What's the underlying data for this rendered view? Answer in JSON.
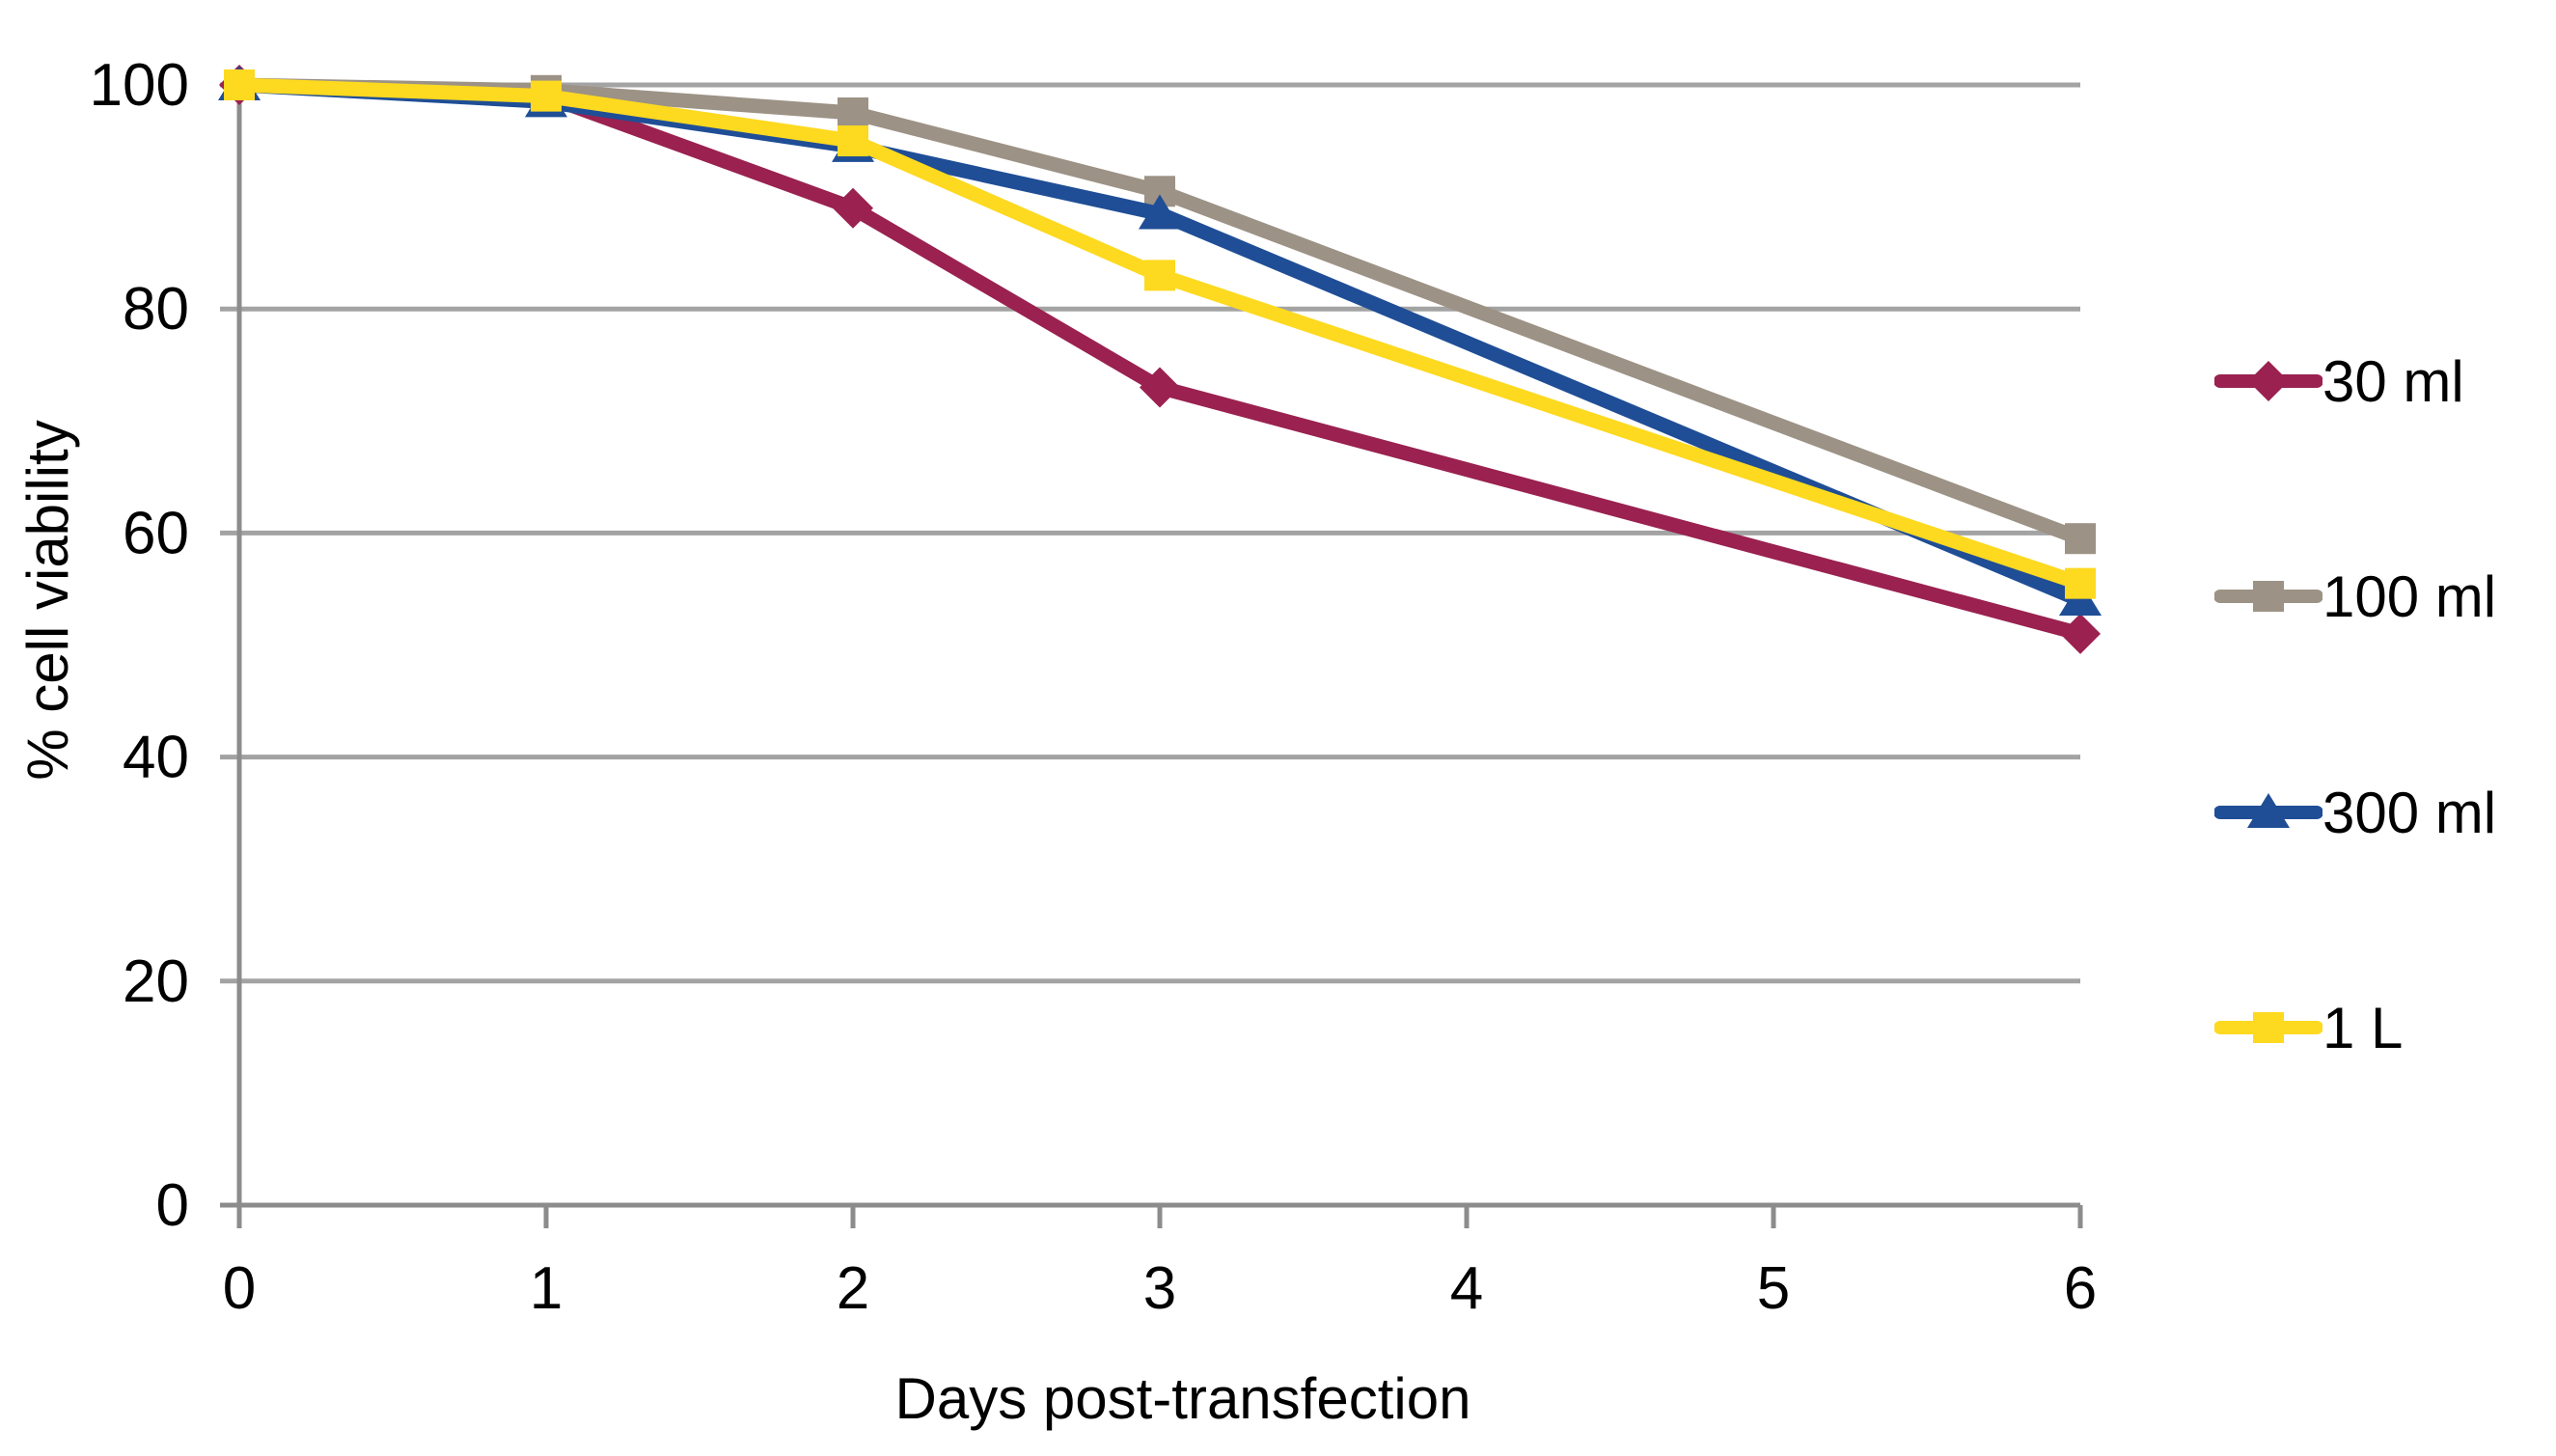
{
  "chart_data": {
    "type": "line",
    "x": [
      0,
      1,
      2,
      3,
      6
    ],
    "x_ticks": [
      0,
      1,
      2,
      3,
      4,
      5,
      6
    ],
    "y_ticks": [
      0,
      20,
      40,
      60,
      80,
      100
    ],
    "xlim": [
      0,
      6
    ],
    "ylim": [
      0,
      100
    ],
    "xlabel": "Days post-transfection",
    "ylabel": "% cell viability",
    "grid": true,
    "legend_position": "right",
    "series": [
      {
        "name": "30 ml",
        "color": "#9A2150",
        "marker": "diamond",
        "values": [
          100,
          99,
          89,
          73,
          51
        ]
      },
      {
        "name": "100 ml",
        "color": "#9C9285",
        "marker": "square",
        "values": [
          100,
          99.5,
          97.5,
          90.5,
          59.5
        ]
      },
      {
        "name": "300 ml",
        "color": "#1F4E96",
        "marker": "triangle",
        "values": [
          100,
          98.5,
          94.5,
          88.5,
          54
        ]
      },
      {
        "name": "1 L",
        "color": "#FDD920",
        "marker": "square",
        "values": [
          100,
          99,
          95,
          83,
          55.5
        ]
      }
    ]
  },
  "colors": {
    "gridline": "#A3A3A3",
    "axis": "#8C8C8C",
    "text": "#000000",
    "background": "#FFFFFF"
  }
}
